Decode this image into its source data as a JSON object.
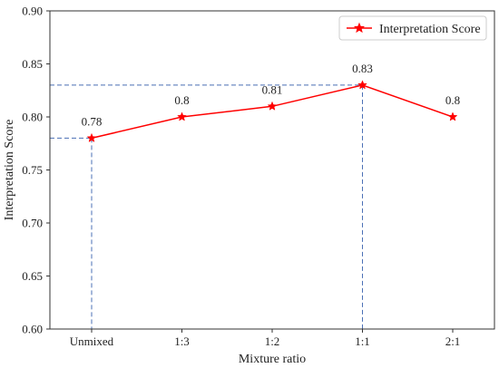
{
  "chart_data": {
    "type": "line",
    "title": "",
    "xlabel": "Mixture  ratio",
    "ylabel": "Interpretation Score",
    "categories": [
      "Unmixed",
      "1:3",
      "1:2",
      "1:1",
      "2:1"
    ],
    "series": [
      {
        "name": "Interpretation Score",
        "values": [
          0.78,
          0.8,
          0.81,
          0.83,
          0.8
        ],
        "value_labels": [
          "0.78",
          "0.8",
          "0.81",
          "0.83",
          "0.8"
        ],
        "color": "#ff0000",
        "marker": "star"
      }
    ],
    "ylim": [
      0.6,
      0.9
    ],
    "yticks": [
      0.6,
      0.65,
      0.7,
      0.75,
      0.8,
      0.85,
      0.9
    ],
    "ytick_labels": [
      "0.60",
      "0.65",
      "0.70",
      "0.75",
      "0.80",
      "0.85",
      "0.90"
    ],
    "grid": false,
    "legend_position": "top-right",
    "reference_lines": [
      {
        "category": "Unmixed",
        "value": 0.78,
        "color": "#4a6fb5",
        "style": "dashed"
      },
      {
        "category": "1:1",
        "value": 0.83,
        "color": "#4a6fb5",
        "style": "dashed"
      }
    ]
  }
}
